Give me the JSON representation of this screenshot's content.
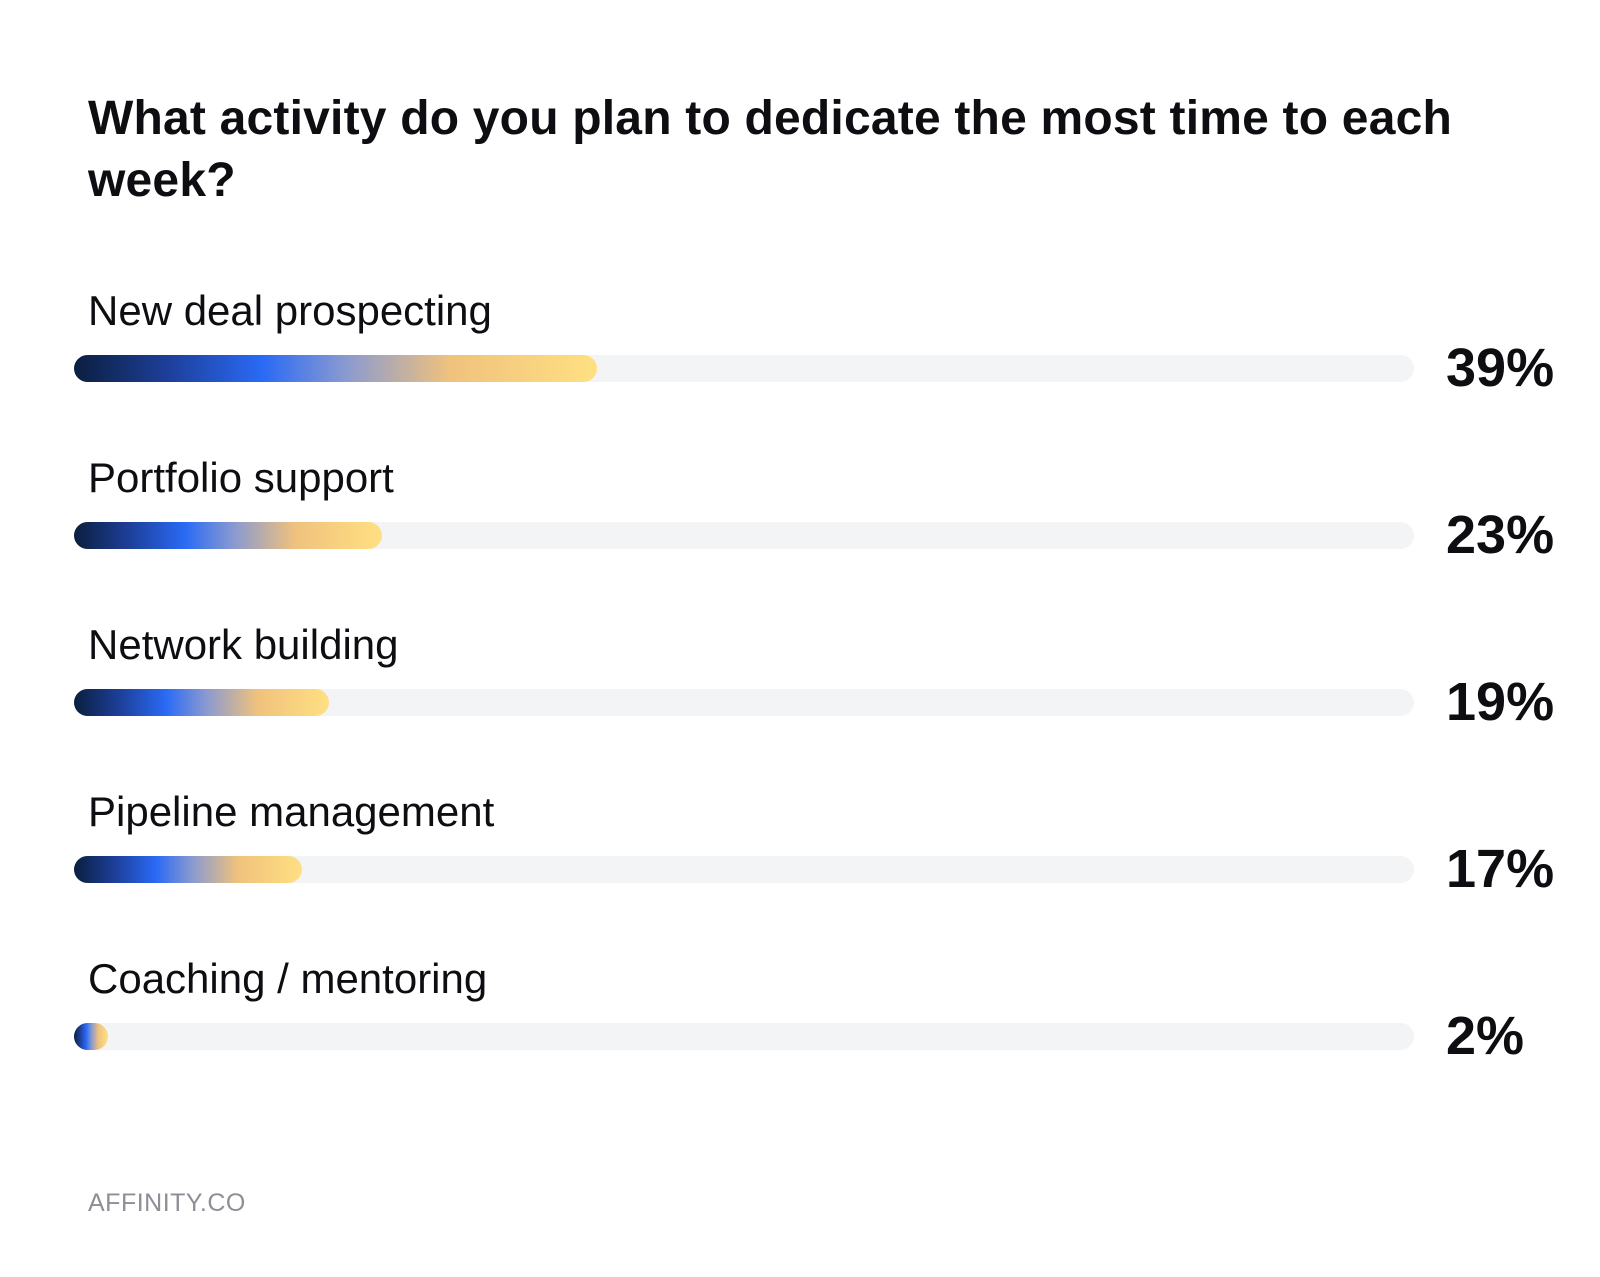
{
  "chart_data": {
    "type": "bar",
    "title": "What activity do you plan to dedicate the most time to each week?",
    "categories": [
      "New deal prospecting",
      "Portfolio support",
      "Network building",
      "Pipeline management",
      "Coaching / mentoring"
    ],
    "values": [
      39,
      23,
      19,
      17,
      2
    ],
    "value_labels": [
      "39%",
      "23%",
      "19%",
      "17%",
      "2%"
    ],
    "xlim": [
      0,
      100
    ],
    "orientation": "horizontal",
    "grid": false,
    "legend": "none"
  },
  "colors": {
    "gradient_start": "#0b1f3f",
    "gradient_mid": "#2a6af5",
    "gradient_end": "#ffe082",
    "track": "#f3f4f6",
    "text": "#0d0d12",
    "source_text": "#8e8e96"
  },
  "footer": {
    "source": "AFFINITY.CO"
  }
}
